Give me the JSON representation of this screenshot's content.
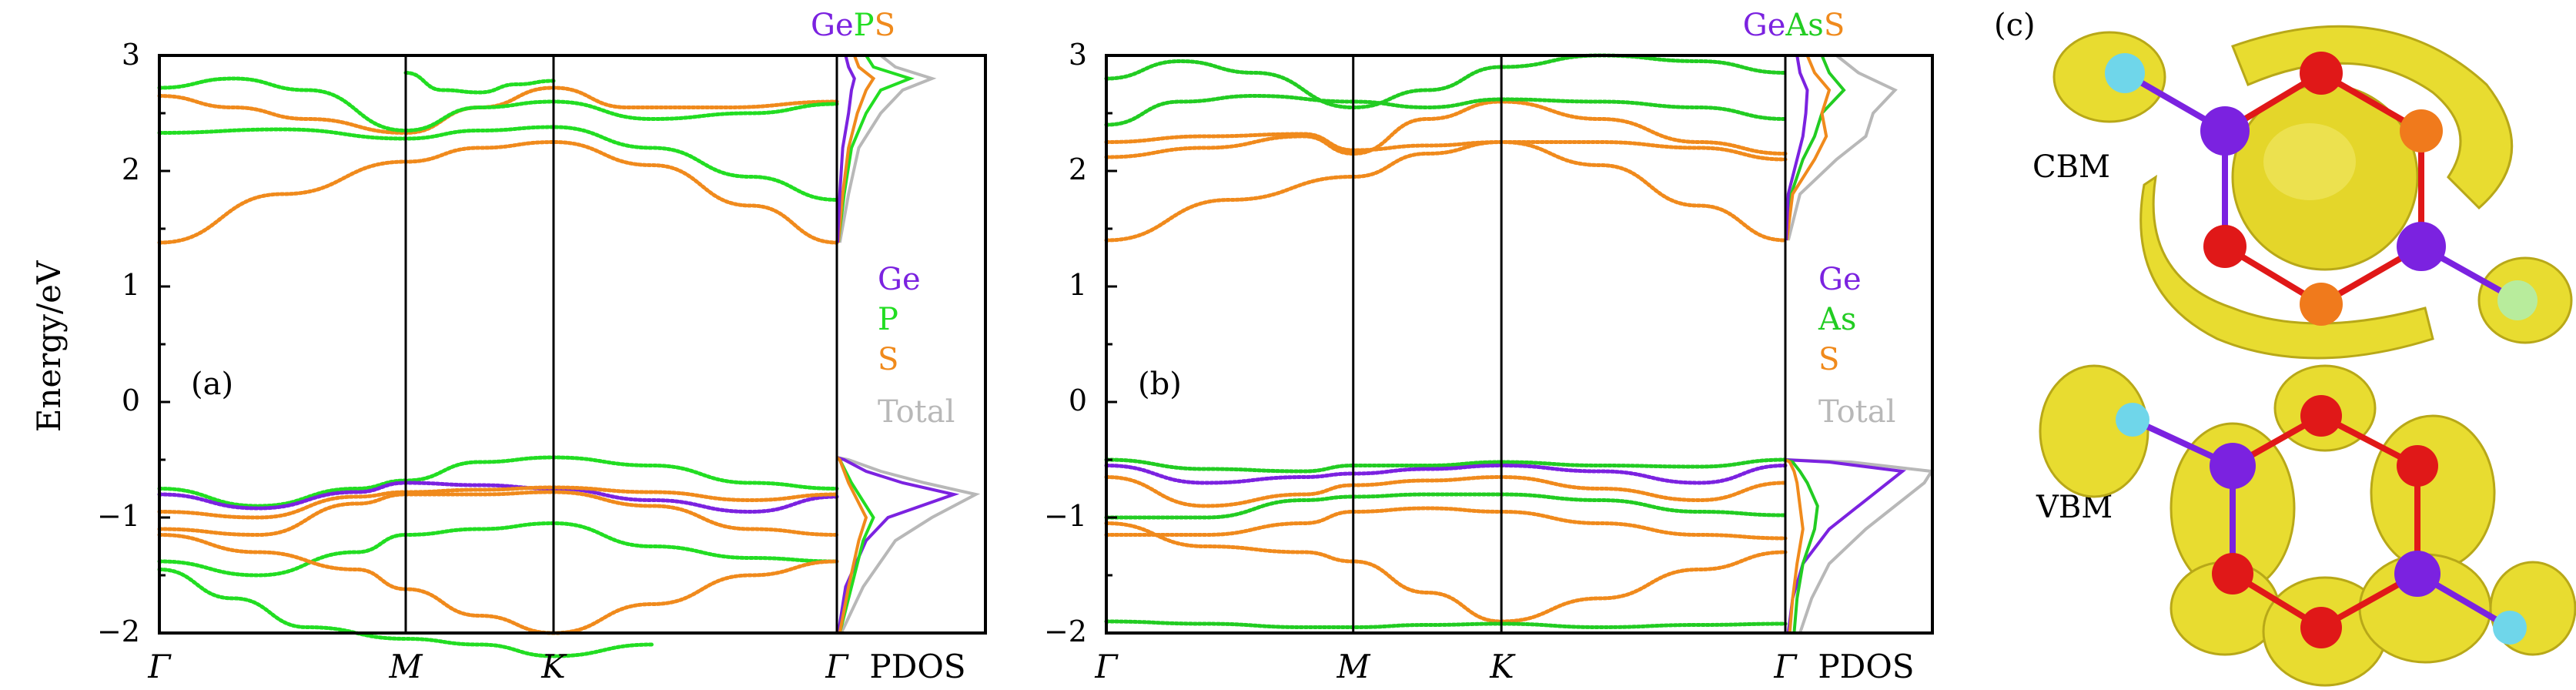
{
  "colors": {
    "Ge": "#7b22e0",
    "P": "#22dd22",
    "As": "#22cc22",
    "S": "#f08a1c",
    "Total": "#b8b8b8",
    "iso": "#e8dc30",
    "atom_cyan": "#6fd6ea",
    "atom_red": "#e01818",
    "atom_orange": "#f07a1c"
  },
  "chart_data": [
    {
      "type": "line",
      "panel_tag": "(a)",
      "title_parts": [
        {
          "text": "Ge",
          "color_key": "Ge"
        },
        {
          "text": "P",
          "color_key": "P"
        },
        {
          "text": "S",
          "color_key": "S"
        }
      ],
      "ylabel": "Energy/eV",
      "ylim": [
        -2,
        3
      ],
      "yticks": [
        3,
        2,
        1,
        0,
        -1,
        -2
      ],
      "ytick_labels": [
        "3",
        "2",
        "1",
        "0",
        "−1",
        "−2"
      ],
      "kpoints": [
        {
          "label": "Γ",
          "x": 0
        },
        {
          "label": "M",
          "x": 1
        },
        {
          "label": "K",
          "x": 1.6
        },
        {
          "label": "Γ",
          "x": 2.75
        }
      ],
      "pdos_label": "PDOS",
      "legend": [
        {
          "label": "Ge",
          "color_key": "Ge"
        },
        {
          "label": "P",
          "color_key": "P"
        },
        {
          "label": "S",
          "color_key": "S"
        },
        {
          "label": "Total",
          "color_key": "Total"
        }
      ],
      "series": [
        {
          "x": [
            0,
            0.5,
            1,
            1.3,
            1.6,
            2.0,
            2.4,
            2.75
          ],
          "y": [
            1.38,
            1.8,
            2.08,
            2.2,
            2.25,
            2.05,
            1.7,
            1.38
          ],
          "color_key": "S"
        },
        {
          "x": [
            0,
            0.5,
            1,
            1.3,
            1.6,
            2.0,
            2.4,
            2.75
          ],
          "y": [
            2.33,
            2.36,
            2.28,
            2.35,
            2.38,
            2.2,
            1.95,
            1.75
          ],
          "color_key": "P"
        },
        {
          "x": [
            0,
            0.3,
            0.6,
            1,
            1.3,
            1.6,
            1.9,
            2.3,
            2.75
          ],
          "y": [
            2.65,
            2.55,
            2.45,
            2.33,
            2.55,
            2.72,
            2.55,
            2.55,
            2.6
          ],
          "color_key": "S"
        },
        {
          "x": [
            0,
            0.3,
            0.6,
            1,
            1.3,
            1.6,
            2.0,
            2.4,
            2.75
          ],
          "y": [
            2.72,
            2.8,
            2.7,
            2.35,
            2.55,
            2.6,
            2.45,
            2.5,
            2.58
          ],
          "color_key": "P"
        },
        {
          "x": [
            1,
            1.15,
            1.3,
            1.45,
            1.6
          ],
          "y": [
            2.85,
            2.7,
            2.68,
            2.75,
            2.78
          ],
          "color_key": "P"
        },
        {
          "x": [
            0,
            0.4,
            0.8,
            1,
            1.3,
            1.6,
            2.0,
            2.4,
            2.75
          ],
          "y": [
            -0.75,
            -0.9,
            -0.75,
            -0.68,
            -0.52,
            -0.48,
            -0.55,
            -0.7,
            -0.75
          ],
          "color_key": "P"
        },
        {
          "x": [
            0,
            0.4,
            0.8,
            1,
            1.3,
            1.6,
            2.0,
            2.4,
            2.75
          ],
          "y": [
            -0.8,
            -0.92,
            -0.78,
            -0.7,
            -0.72,
            -0.75,
            -0.85,
            -0.95,
            -0.82
          ],
          "color_key": "Ge"
        },
        {
          "x": [
            0,
            0.4,
            0.8,
            1,
            1.3,
            1.6,
            2.0,
            2.4,
            2.75
          ],
          "y": [
            -0.95,
            -1.0,
            -0.82,
            -0.78,
            -0.76,
            -0.74,
            -0.78,
            -0.85,
            -0.8
          ],
          "color_key": "S"
        },
        {
          "x": [
            0,
            0.4,
            0.8,
            1,
            1.3,
            1.6,
            2.0,
            2.4,
            2.75
          ],
          "y": [
            -1.1,
            -1.15,
            -0.88,
            -0.8,
            -0.8,
            -0.78,
            -0.9,
            -1.1,
            -1.15
          ],
          "color_key": "S"
        },
        {
          "x": [
            0,
            0.4,
            0.8,
            1,
            1.3,
            1.6,
            2.0,
            2.4,
            2.75
          ],
          "y": [
            -1.38,
            -1.5,
            -1.3,
            -1.15,
            -1.1,
            -1.05,
            -1.25,
            -1.35,
            -1.38
          ],
          "color_key": "P"
        },
        {
          "x": [
            0,
            0.4,
            0.8,
            1,
            1.3,
            1.6,
            2.0,
            2.4,
            2.75
          ],
          "y": [
            -1.15,
            -1.3,
            -1.45,
            -1.62,
            -1.85,
            -2.0,
            -1.75,
            -1.5,
            -1.38
          ],
          "color_key": "S"
        },
        {
          "x": [
            0,
            0.3,
            0.6,
            1,
            1.3,
            1.6,
            2.0
          ],
          "y": [
            -1.45,
            -1.7,
            -1.95,
            -2.05,
            -2.1,
            -2.2,
            -2.1
          ],
          "color_key": "P"
        }
      ],
      "pdos": [
        {
          "color_key": "Total",
          "e": [
            -2,
            -1.6,
            -1.2,
            -1.0,
            -0.8,
            -0.7,
            -0.6,
            -0.5,
            -0.48
          ],
          "d": [
            0.03,
            0.18,
            0.4,
            0.65,
            0.95,
            0.6,
            0.3,
            0.08,
            0.0
          ]
        },
        {
          "color_key": "Ge",
          "e": [
            -2,
            -1.6,
            -1.2,
            -1.0,
            -0.8,
            -0.7,
            -0.6,
            -0.5,
            -0.48
          ],
          "d": [
            0.01,
            0.06,
            0.2,
            0.35,
            0.8,
            0.45,
            0.2,
            0.05,
            0.0
          ]
        },
        {
          "color_key": "P",
          "e": [
            -2,
            -1.6,
            -1.2,
            -1.0,
            -0.8,
            -0.7,
            -0.6,
            -0.5,
            -0.48
          ],
          "d": [
            0.02,
            0.1,
            0.18,
            0.25,
            0.15,
            0.1,
            0.06,
            0.02,
            0.0
          ]
        },
        {
          "color_key": "S",
          "e": [
            -2,
            -1.6,
            -1.2,
            -1.0,
            -0.8,
            -0.7,
            -0.6,
            -0.5,
            -0.48
          ],
          "d": [
            0.02,
            0.08,
            0.15,
            0.2,
            0.12,
            0.08,
            0.05,
            0.02,
            0.0
          ]
        },
        {
          "color_key": "Total",
          "e": [
            1.38,
            1.8,
            2.2,
            2.5,
            2.7,
            2.8,
            2.9,
            3.0
          ],
          "d": [
            0.02,
            0.08,
            0.15,
            0.3,
            0.45,
            0.65,
            0.4,
            0.3
          ]
        },
        {
          "color_key": "P",
          "e": [
            1.38,
            1.8,
            2.2,
            2.5,
            2.7,
            2.8,
            2.9,
            3.0
          ],
          "d": [
            0.01,
            0.05,
            0.1,
            0.2,
            0.3,
            0.5,
            0.25,
            0.2
          ]
        },
        {
          "color_key": "S",
          "e": [
            1.38,
            1.8,
            2.2,
            2.5,
            2.7,
            2.8,
            2.9,
            3.0
          ],
          "d": [
            0.01,
            0.04,
            0.08,
            0.14,
            0.2,
            0.25,
            0.15,
            0.12
          ]
        },
        {
          "color_key": "Ge",
          "e": [
            1.38,
            1.8,
            2.2,
            2.5,
            2.7,
            2.8,
            2.9,
            3.0
          ],
          "d": [
            0.005,
            0.02,
            0.04,
            0.08,
            0.1,
            0.12,
            0.08,
            0.06
          ]
        }
      ]
    },
    {
      "type": "line",
      "panel_tag": "(b)",
      "title_parts": [
        {
          "text": "Ge",
          "color_key": "Ge"
        },
        {
          "text": "As",
          "color_key": "As"
        },
        {
          "text": "S",
          "color_key": "S"
        }
      ],
      "ylim": [
        -2,
        3
      ],
      "yticks": [
        3,
        2,
        1,
        0,
        -1,
        -2
      ],
      "ytick_labels": [
        "3",
        "2",
        "1",
        "0",
        "−1",
        "−2"
      ],
      "kpoints": [
        {
          "label": "Γ",
          "x": 0
        },
        {
          "label": "M",
          "x": 1
        },
        {
          "label": "K",
          "x": 1.6
        },
        {
          "label": "Γ",
          "x": 2.75
        }
      ],
      "pdos_label": "PDOS",
      "legend": [
        {
          "label": "Ge",
          "color_key": "Ge"
        },
        {
          "label": "As",
          "color_key": "As"
        },
        {
          "label": "S",
          "color_key": "S"
        },
        {
          "label": "Total",
          "color_key": "Total"
        }
      ],
      "series": [
        {
          "x": [
            0,
            0.5,
            1,
            1.3,
            1.6,
            2.0,
            2.4,
            2.75
          ],
          "y": [
            1.4,
            1.75,
            1.95,
            2.15,
            2.25,
            2.05,
            1.7,
            1.4
          ],
          "color_key": "S"
        },
        {
          "x": [
            0,
            0.4,
            0.8,
            1,
            1.3,
            1.6,
            2.0,
            2.4,
            2.75
          ],
          "y": [
            2.12,
            2.2,
            2.3,
            2.15,
            2.45,
            2.6,
            2.45,
            2.25,
            2.15
          ],
          "color_key": "S"
        },
        {
          "x": [
            0,
            0.4,
            0.8,
            1,
            1.3,
            1.6,
            2.0,
            2.4,
            2.75
          ],
          "y": [
            2.25,
            2.3,
            2.32,
            2.18,
            2.22,
            2.25,
            2.25,
            2.2,
            2.1
          ],
          "color_key": "S"
        },
        {
          "x": [
            0,
            0.3,
            0.6,
            1,
            1.3,
            1.6,
            2.0,
            2.4,
            2.75
          ],
          "y": [
            2.4,
            2.6,
            2.65,
            2.6,
            2.55,
            2.62,
            2.6,
            2.55,
            2.45
          ],
          "color_key": "As"
        },
        {
          "x": [
            0,
            0.3,
            0.6,
            1,
            1.3,
            1.6,
            2.0,
            2.4,
            2.75
          ],
          "y": [
            2.8,
            2.95,
            2.85,
            2.55,
            2.7,
            2.9,
            3.0,
            2.95,
            2.85
          ],
          "color_key": "As"
        },
        {
          "x": [
            0,
            0.4,
            0.8,
            1,
            1.3,
            1.6,
            2.0,
            2.4,
            2.75
          ],
          "y": [
            -0.5,
            -0.58,
            -0.6,
            -0.55,
            -0.55,
            -0.52,
            -0.55,
            -0.56,
            -0.5
          ],
          "color_key": "As"
        },
        {
          "x": [
            0,
            0.4,
            0.8,
            1,
            1.3,
            1.6,
            2.0,
            2.4,
            2.75
          ],
          "y": [
            -0.55,
            -0.7,
            -0.65,
            -0.62,
            -0.58,
            -0.55,
            -0.6,
            -0.7,
            -0.55
          ],
          "color_key": "Ge"
        },
        {
          "x": [
            0,
            0.4,
            0.8,
            1,
            1.3,
            1.6,
            2.0,
            2.4,
            2.75
          ],
          "y": [
            -0.65,
            -0.9,
            -0.8,
            -0.72,
            -0.68,
            -0.65,
            -0.75,
            -0.85,
            -0.7
          ],
          "color_key": "S"
        },
        {
          "x": [
            0,
            0.4,
            0.8,
            1,
            1.3,
            1.6,
            2.0,
            2.4,
            2.75
          ],
          "y": [
            -1.0,
            -1.0,
            -0.85,
            -0.82,
            -0.8,
            -0.8,
            -0.85,
            -0.95,
            -0.98
          ],
          "color_key": "As"
        },
        {
          "x": [
            0,
            0.4,
            0.8,
            1,
            1.3,
            1.6,
            2.0,
            2.4,
            2.75
          ],
          "y": [
            -1.15,
            -1.15,
            -1.05,
            -0.95,
            -0.92,
            -0.95,
            -1.05,
            -1.15,
            -1.18
          ],
          "color_key": "S"
        },
        {
          "x": [
            0,
            0.4,
            0.8,
            1,
            1.3,
            1.6,
            2.0,
            2.4,
            2.75
          ],
          "y": [
            -1.05,
            -1.25,
            -1.3,
            -1.38,
            -1.65,
            -1.9,
            -1.7,
            -1.45,
            -1.3
          ],
          "color_key": "S"
        },
        {
          "x": [
            0,
            0.4,
            0.8,
            1,
            1.3,
            1.6,
            2.0,
            2.4,
            2.75
          ],
          "y": [
            -1.9,
            -1.92,
            -1.95,
            -1.95,
            -1.93,
            -1.92,
            -1.95,
            -1.93,
            -1.92
          ],
          "color_key": "As"
        }
      ],
      "pdos": [
        {
          "color_key": "Total",
          "e": [
            -2,
            -1.7,
            -1.4,
            -1.1,
            -0.9,
            -0.7,
            -0.6,
            -0.52,
            -0.5
          ],
          "d": [
            0.1,
            0.18,
            0.3,
            0.55,
            0.75,
            0.95,
            1.0,
            0.45,
            0.0
          ]
        },
        {
          "color_key": "Ge",
          "e": [
            -2,
            -1.7,
            -1.4,
            -1.1,
            -0.9,
            -0.7,
            -0.6,
            -0.52,
            -0.5
          ],
          "d": [
            0.02,
            0.05,
            0.12,
            0.3,
            0.5,
            0.7,
            0.8,
            0.3,
            0.0
          ]
        },
        {
          "color_key": "As",
          "e": [
            -2,
            -1.7,
            -1.4,
            -1.1,
            -0.9,
            -0.7,
            -0.6,
            -0.52,
            -0.5
          ],
          "d": [
            0.06,
            0.08,
            0.12,
            0.2,
            0.22,
            0.15,
            0.1,
            0.05,
            0.0
          ]
        },
        {
          "color_key": "S",
          "e": [
            -2,
            -1.7,
            -1.4,
            -1.1,
            -0.9,
            -0.7,
            -0.6,
            -0.52,
            -0.5
          ],
          "d": [
            0.03,
            0.05,
            0.08,
            0.12,
            0.1,
            0.08,
            0.06,
            0.03,
            0.0
          ]
        },
        {
          "color_key": "Total",
          "e": [
            1.4,
            1.8,
            2.1,
            2.3,
            2.5,
            2.7,
            2.85,
            3.0
          ],
          "d": [
            0.02,
            0.1,
            0.35,
            0.55,
            0.6,
            0.75,
            0.5,
            0.35
          ]
        },
        {
          "color_key": "As",
          "e": [
            1.4,
            1.8,
            2.1,
            2.3,
            2.5,
            2.7,
            2.85,
            3.0
          ],
          "d": [
            0.01,
            0.04,
            0.12,
            0.2,
            0.25,
            0.4,
            0.3,
            0.25
          ]
        },
        {
          "color_key": "S",
          "e": [
            1.4,
            1.8,
            2.1,
            2.3,
            2.5,
            2.7,
            2.85,
            3.0
          ],
          "d": [
            0.01,
            0.05,
            0.2,
            0.28,
            0.25,
            0.3,
            0.2,
            0.15
          ]
        },
        {
          "color_key": "Ge",
          "e": [
            1.4,
            1.8,
            2.1,
            2.3,
            2.5,
            2.7,
            2.85,
            3.0
          ],
          "d": [
            0.005,
            0.02,
            0.08,
            0.12,
            0.14,
            0.15,
            0.1,
            0.08
          ]
        }
      ]
    }
  ],
  "panel_c": {
    "tag": "(c)",
    "cbm_label": "CBM",
    "vbm_label": "VBM"
  }
}
